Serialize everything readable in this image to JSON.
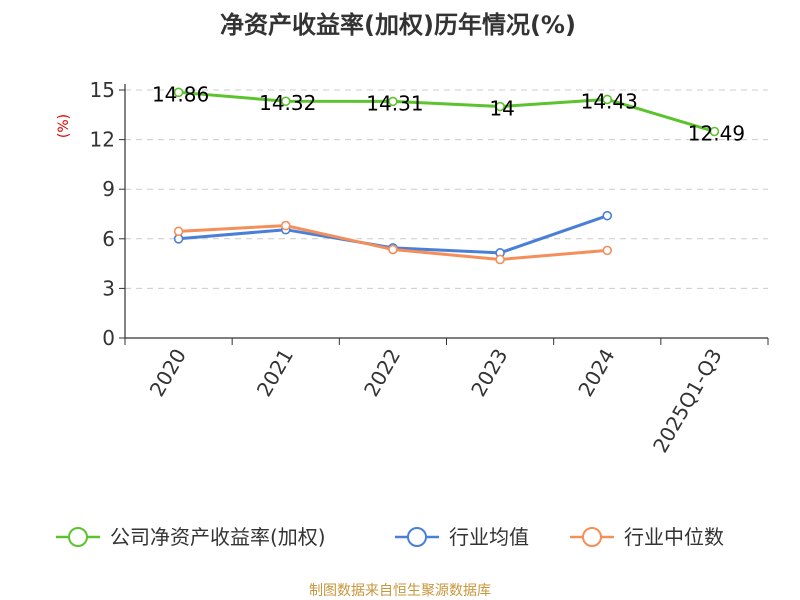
{
  "chart_data": {
    "type": "line",
    "title": "净资产收益率(加权)历年情况(%)",
    "ylabel": "(%)",
    "xlabel": "",
    "categories": [
      "2020",
      "2021",
      "2022",
      "2023",
      "2024",
      "2025Q1-Q3"
    ],
    "ylim": [
      0,
      15
    ],
    "yticks": [
      0,
      3,
      6,
      9,
      12,
      15
    ],
    "grid": true,
    "legend_position": "bottom",
    "series": [
      {
        "name": "公司净资产收益率(加权)",
        "color": "#5cc32c",
        "values": [
          14.86,
          14.32,
          14.31,
          14,
          14.43,
          12.49
        ],
        "labels": [
          "14.86",
          "14.32",
          "14.31",
          "14",
          "14.43",
          "12.49"
        ]
      },
      {
        "name": "行业均值",
        "color": "#4a7fd8",
        "values": [
          6.0,
          6.55,
          5.45,
          5.15,
          7.4,
          null
        ]
      },
      {
        "name": "行业中位数",
        "color": "#f48f5a",
        "values": [
          6.45,
          6.8,
          5.35,
          4.75,
          5.3,
          null
        ]
      }
    ],
    "source": "制图数据来自恒生聚源数据库"
  }
}
